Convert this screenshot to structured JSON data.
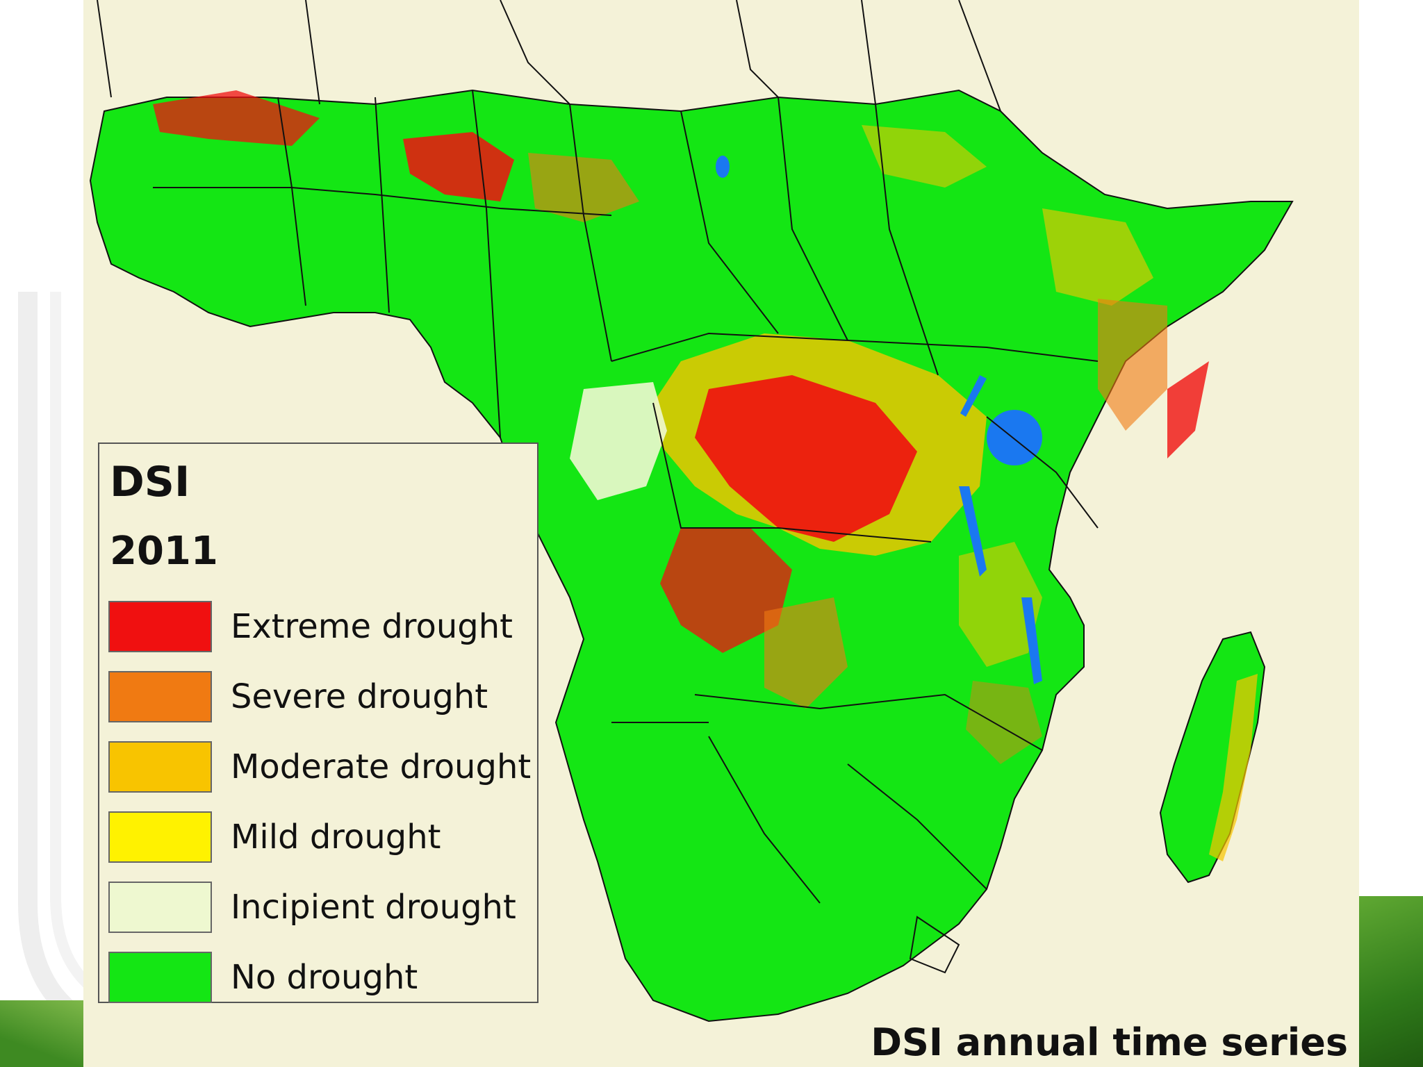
{
  "legend": {
    "title": "DSI",
    "year": "2011",
    "items": [
      {
        "label": "Extreme drought",
        "color": "#f01010"
      },
      {
        "label": "Severe drought",
        "color": "#f07a12"
      },
      {
        "label": "Moderate drought",
        "color": "#f8c400"
      },
      {
        "label": "Mild drought",
        "color": "#fff200"
      },
      {
        "label": "Incipient drought",
        "color": "#eef8d0"
      },
      {
        "label": "No drought",
        "color": "#14e614"
      }
    ]
  },
  "caption": "DSI annual time series",
  "colors": {
    "background": "#f4f2d8",
    "no_drought": "#14e614",
    "extreme": "#f01010",
    "severe": "#f07a12",
    "moderate": "#f8c400",
    "mild": "#fff200",
    "incipient": "#eef8d0",
    "water": "#1a78f0",
    "border": "#111111"
  }
}
